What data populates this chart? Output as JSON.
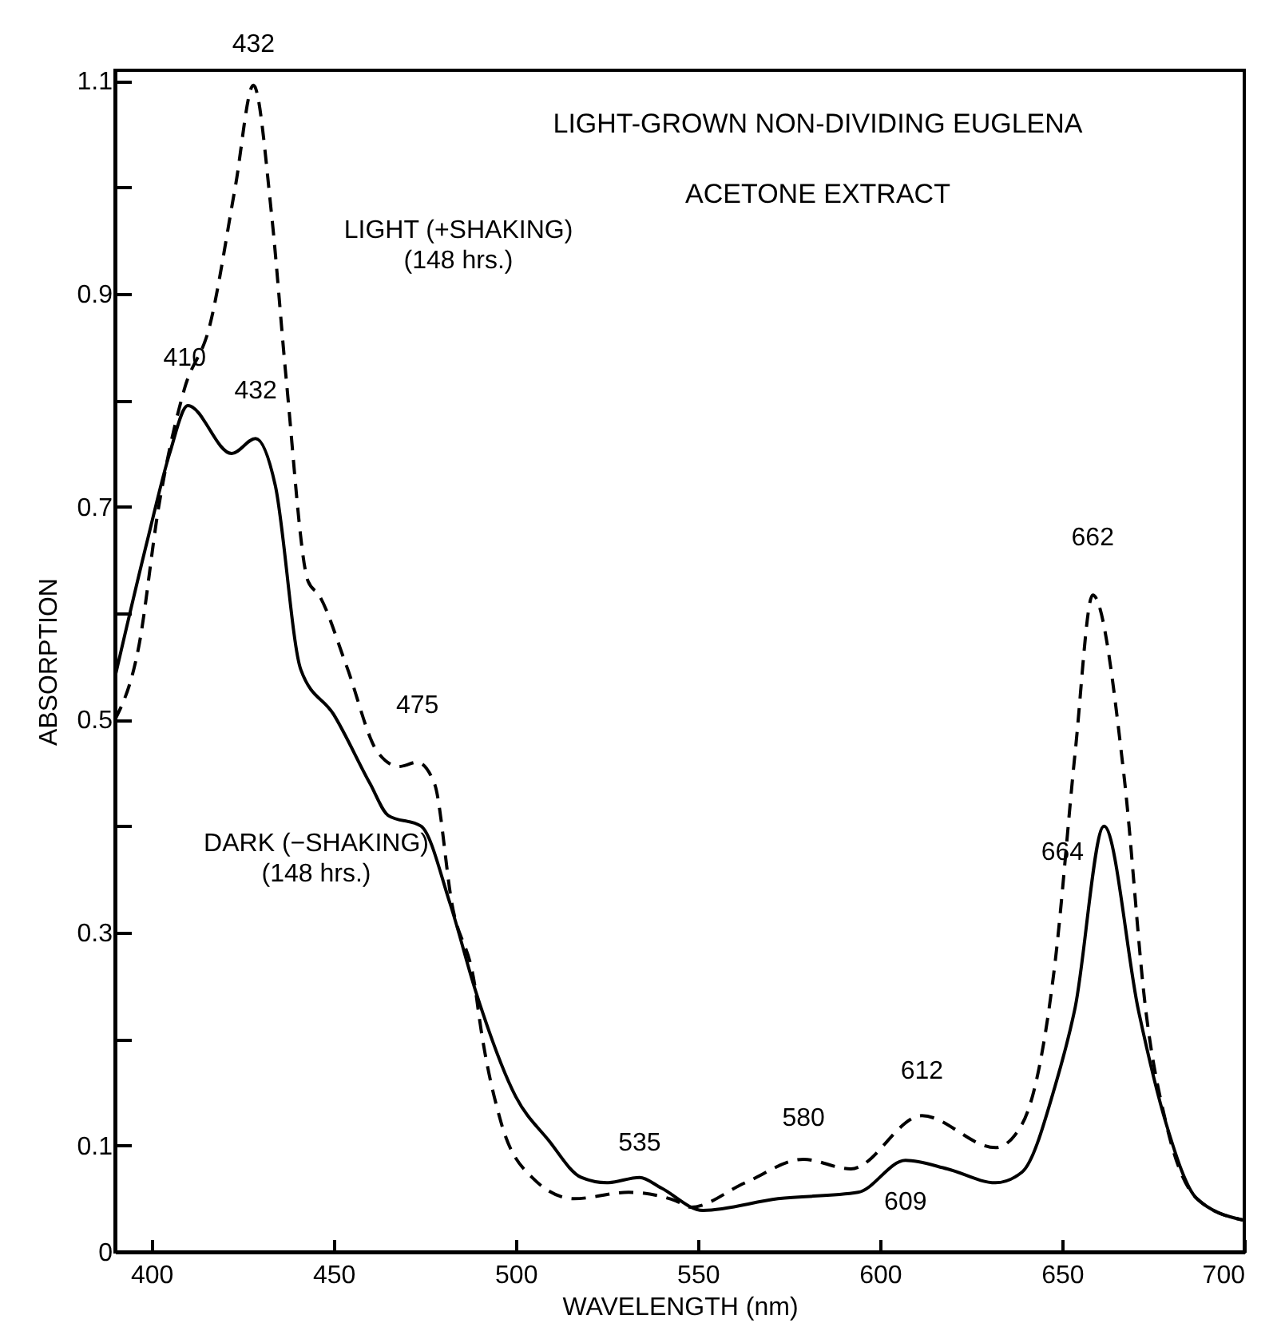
{
  "chart_data": {
    "type": "line",
    "title": "LIGHT-GROWN NON-DIVIDING EUGLENA",
    "subtitle": "ACETONE EXTRACT",
    "xlabel": "WAVELENGTH (nm)",
    "ylabel": "ABSORPTION",
    "xlim": [
      390,
      700
    ],
    "xticks": [
      400,
      450,
      500,
      550,
      600,
      650,
      700
    ],
    "ylim": [
      0,
      1.11
    ],
    "yticks": [
      0,
      0.1,
      {
        "value": 0.2,
        "label": null
      },
      0.3,
      {
        "value": 0.4,
        "label": null
      },
      0.5,
      {
        "value": 0.6,
        "label": null
      },
      0.7,
      {
        "value": 0.8,
        "label": null
      },
      0.9,
      {
        "value": 1.0,
        "label": null
      },
      1.1
    ],
    "grid": false,
    "marker": "none",
    "series": [
      {
        "name": "LIGHT (+SHAKING)\n(148 hrs.)",
        "color": "#000000",
        "line_style": "dashed",
        "x": [
          390,
          396.6,
          402,
          409,
          416,
          423,
          428,
          433,
          437,
          443,
          446,
          453.6,
          462,
          468,
          473,
          477.7,
          482.5,
          489,
          490,
          495.7,
          504.5,
          516,
          531,
          544,
          548,
          563,
          579,
          592,
          611.5,
          631.7,
          639,
          648,
          653.6,
          658.4,
          667,
          673,
          678.6,
          687,
          699.6
        ],
        "values": [
          0.5,
          0.57,
          0.7,
          0.81,
          0.87,
          1.0,
          1.096,
          0.974,
          0.82,
          0.63,
          0.617,
          0.55,
          0.47,
          0.456,
          0.46,
          0.44,
          0.327,
          0.245,
          0.22,
          0.125,
          0.07,
          0.05,
          0.056,
          0.048,
          0.042,
          0.065,
          0.087,
          0.078,
          0.128,
          0.098,
          0.12,
          0.27,
          0.47,
          0.617,
          0.447,
          0.226,
          0.12,
          0.05,
          0.03
        ]
      },
      {
        "name": "DARK (−SHAKING)\n(148 hrs.)",
        "color": "#000000",
        "line_style": "solid",
        "x": [
          390,
          399,
          405,
          410,
          422,
          428.6,
          434,
          441,
          450,
          460,
          465,
          474,
          482,
          489,
          500,
          509,
          518,
          525,
          534,
          540,
          551.4,
          572,
          594,
          607,
          618.5,
          631.7,
          639,
          648,
          653.6,
          661.5,
          671,
          678.6,
          687,
          699.6
        ],
        "values": [
          0.54,
          0.67,
          0.75,
          0.795,
          0.75,
          0.764,
          0.72,
          0.547,
          0.505,
          0.44,
          0.41,
          0.4,
          0.327,
          0.245,
          0.146,
          0.105,
          0.07,
          0.065,
          0.07,
          0.06,
          0.039,
          0.05,
          0.056,
          0.086,
          0.078,
          0.065,
          0.075,
          0.155,
          0.23,
          0.4,
          0.226,
          0.12,
          0.05,
          0.03
        ]
      }
    ],
    "annotations": [
      {
        "text": "432",
        "x": 428,
        "y": 1.096
      },
      {
        "text": "410",
        "x": 410,
        "y": 0.795
      },
      {
        "text": "432",
        "x": 428.6,
        "y": 0.764
      },
      {
        "text": "475",
        "x": 473,
        "y": 0.46
      },
      {
        "text": "535",
        "x": 534,
        "y": 0.07
      },
      {
        "text": "580",
        "x": 579,
        "y": 0.087
      },
      {
        "text": "612",
        "x": 611.5,
        "y": 0.128
      },
      {
        "text": "609",
        "x": 607,
        "y": 0.086
      },
      {
        "text": "662",
        "x": 658.4,
        "y": 0.617
      },
      {
        "text": "664",
        "x": 661.5,
        "y": 0.4
      }
    ]
  }
}
